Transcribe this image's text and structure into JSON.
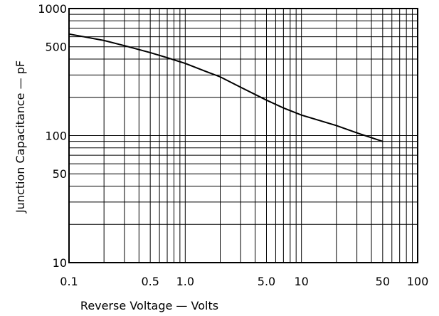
{
  "chart_data": {
    "type": "line",
    "x_scale": "log",
    "y_scale": "log",
    "xlim": [
      0.1,
      100
    ],
    "ylim": [
      10,
      1000
    ],
    "xlabel": "Reverse Voltage — Volts",
    "ylabel": "Junction Capacitance — pF",
    "grid": true,
    "x_ticks": [
      {
        "value": 0.1,
        "label": "0.1"
      },
      {
        "value": 0.5,
        "label": "0.5"
      },
      {
        "value": 1,
        "label": "1.0"
      },
      {
        "value": 5,
        "label": "5.0"
      },
      {
        "value": 10,
        "label": "10"
      },
      {
        "value": 50,
        "label": "50"
      },
      {
        "value": 100,
        "label": "100"
      }
    ],
    "y_ticks": [
      {
        "value": 10,
        "label": "10"
      },
      {
        "value": 50,
        "label": "50"
      },
      {
        "value": 100,
        "label": "100"
      },
      {
        "value": 500,
        "label": "500"
      },
      {
        "value": 1000,
        "label": "1000"
      }
    ],
    "series": [
      {
        "x": [
          0.1,
          0.2,
          0.3,
          0.5,
          0.7,
          1.0,
          1.5,
          2.0,
          3.0,
          5.0,
          7.0,
          10,
          20,
          30,
          50
        ],
        "y": [
          630,
          560,
          510,
          450,
          410,
          370,
          320,
          290,
          240,
          190,
          165,
          145,
          120,
          105,
          90
        ]
      }
    ]
  }
}
